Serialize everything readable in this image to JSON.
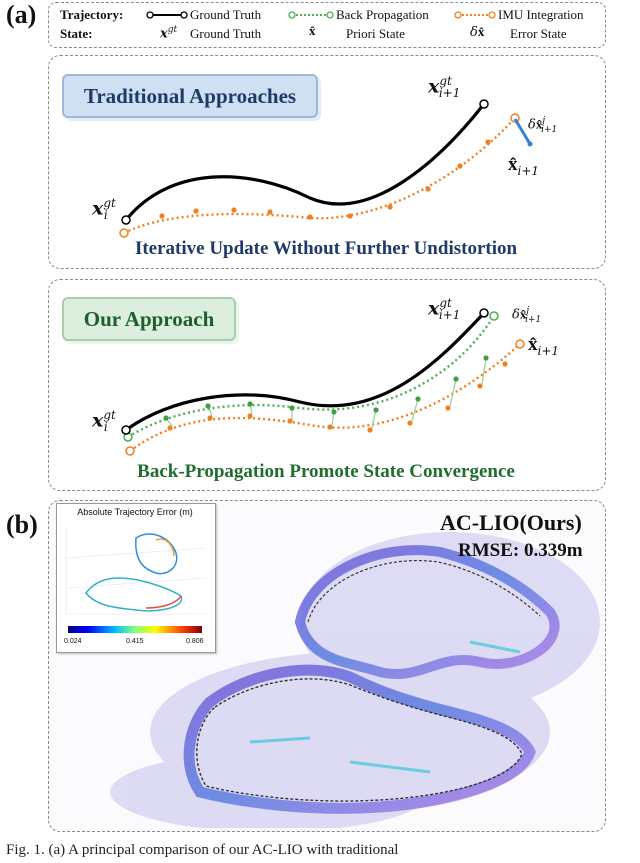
{
  "panel_a": {
    "label": "(a)",
    "legend": {
      "trajectory_key": "Trajectory:",
      "state_key": "State:",
      "items": [
        "Ground Truth",
        "Back Propagation",
        "IMU Integration"
      ],
      "states": [
        "Ground Truth",
        "Priori State",
        "Error State"
      ]
    },
    "traditional": {
      "badge": "Traditional Approaches",
      "caption": "Iterative Update Without Further Undistortion"
    },
    "ours": {
      "badge": "Our Approach",
      "caption": "Back-Propagation Promote State Convergence"
    },
    "colors": {
      "ground_truth": "#000000",
      "back_propagation": "#4caf50",
      "imu_integration": "#f07f1f",
      "error_state": "#3b7fd1"
    }
  },
  "panel_b": {
    "label": "(b)",
    "method": "AC-LIO(Ours)",
    "rmse": "RMSE: 0.339m",
    "inset": {
      "title": "Absolute Trajectory Error (m)",
      "colorbar_ticks": [
        "0.024",
        "0.415",
        "0.806"
      ]
    }
  },
  "footer": "Fig. 1.   (a) A principal comparison of our AC-LIO with traditional"
}
